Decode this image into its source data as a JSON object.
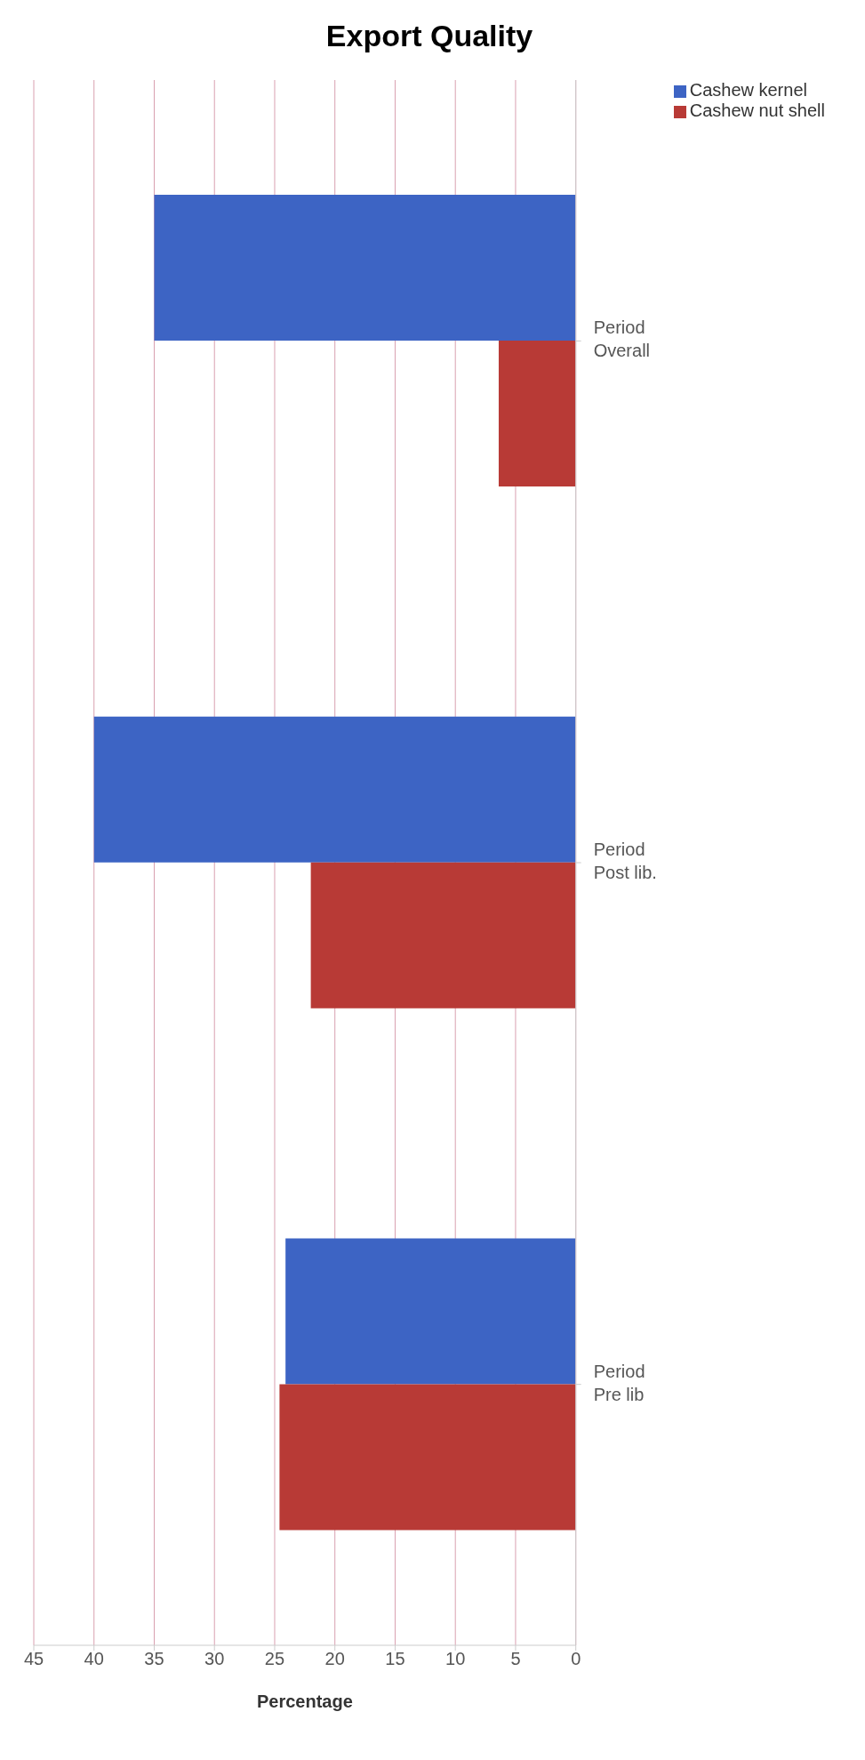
{
  "chart_data": {
    "type": "bar",
    "orientation": "horizontal",
    "title": "Export Quality",
    "xlabel": "Percentage",
    "categories": [
      "Period\nOverall",
      "Period\nPost lib.",
      "Period\nPre lib"
    ],
    "series": [
      {
        "name": "Cashew kernel",
        "color": "#3d64c4",
        "values": [
          35,
          40,
          24.1
        ]
      },
      {
        "name": "Cashew nut shell",
        "color": "#b83a36",
        "values": [
          6.4,
          22,
          24.6
        ]
      }
    ],
    "xlim": [
      45,
      0
    ],
    "xticks": [
      0,
      5,
      10,
      15,
      20,
      25,
      30,
      35,
      40,
      45
    ],
    "grid": "x",
    "legend": "top right"
  }
}
